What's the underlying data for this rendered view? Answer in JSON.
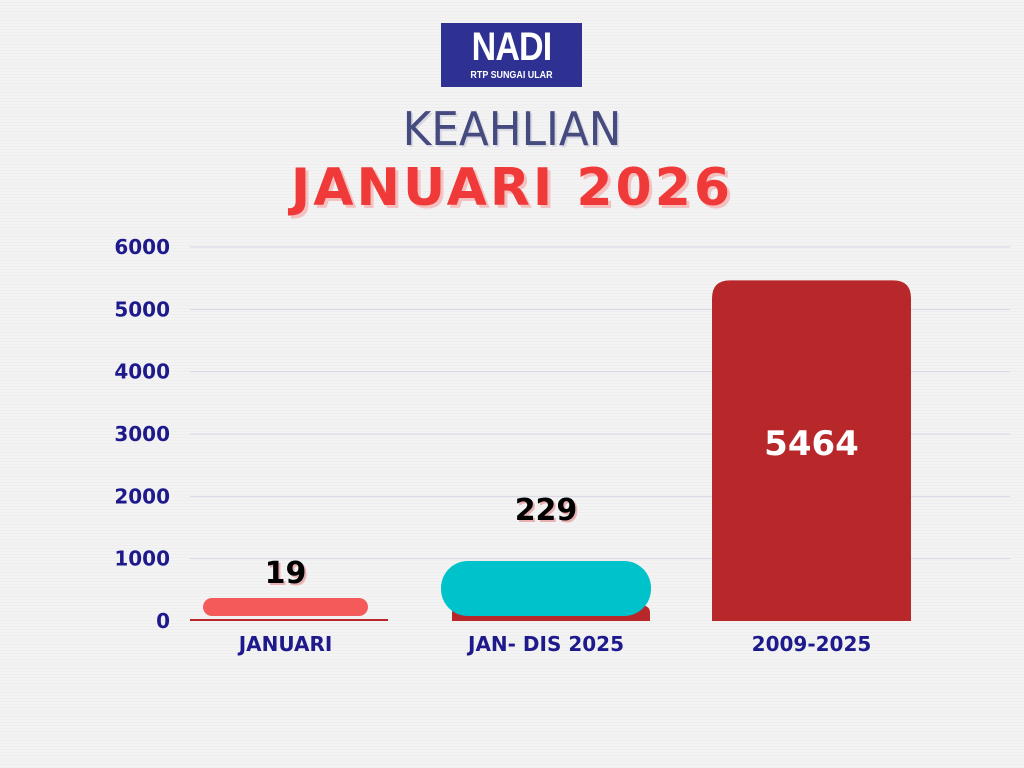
{
  "logo": {
    "main": "NADI",
    "sub": "RTP SUNGAI ULAR",
    "bg": "#2e3192"
  },
  "title": "KEAHLIAN",
  "subtitle": "JANUARI 2026",
  "chart_data": {
    "type": "bar",
    "categories": [
      "JANUARI",
      "JAN- DIS 2025",
      "2009-2025"
    ],
    "values": [
      19,
      229,
      5464
    ],
    "data_labels": [
      "19",
      "229",
      "5464"
    ],
    "ylim": [
      0,
      6000
    ],
    "yticks": [
      "0",
      "1000",
      "2000",
      "3000",
      "4000",
      "5000",
      "6000"
    ],
    "grid": true,
    "colors": [
      "#f55a5a",
      "#00c2cb",
      "#b8272a"
    ],
    "axis_color": "#1e1a8c"
  }
}
